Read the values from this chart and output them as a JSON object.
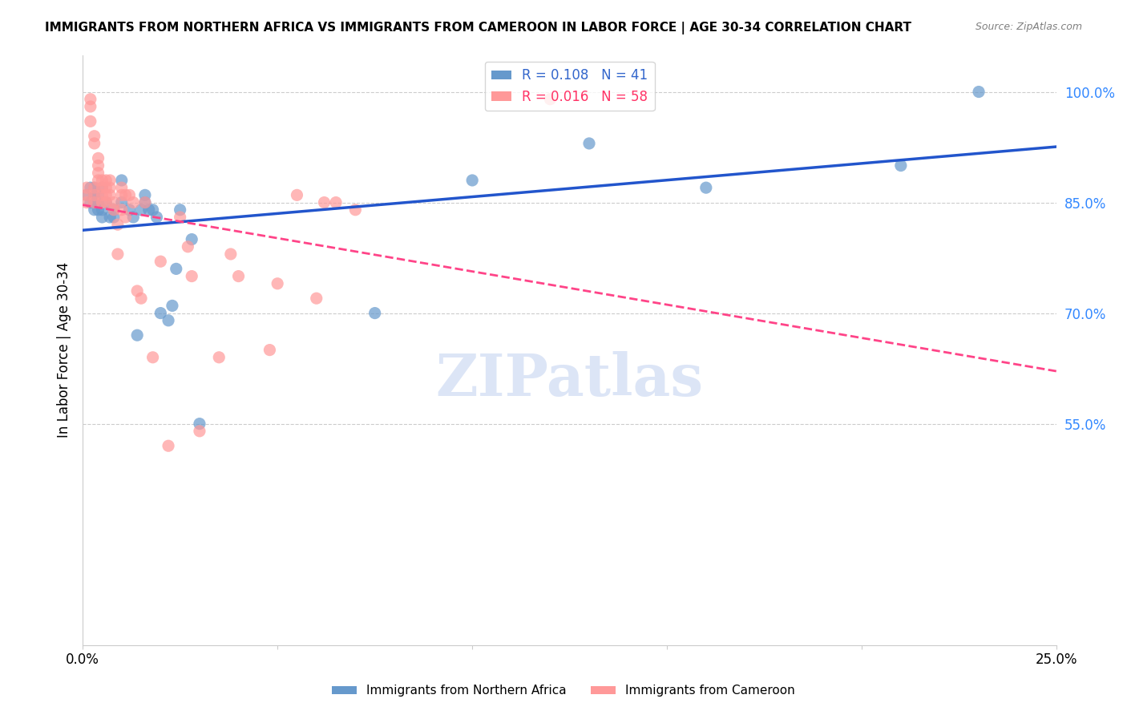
{
  "title": "IMMIGRANTS FROM NORTHERN AFRICA VS IMMIGRANTS FROM CAMEROON IN LABOR FORCE | AGE 30-34 CORRELATION CHART",
  "source": "Source: ZipAtlas.com",
  "xlabel_bottom": "",
  "ylabel": "In Labor Force | Age 30-34",
  "xlim": [
    0.0,
    0.25
  ],
  "ylim": [
    0.25,
    1.05
  ],
  "yticks": [
    0.55,
    0.7,
    0.85,
    1.0
  ],
  "ytick_labels": [
    "55.0%",
    "70.0%",
    "85.0%",
    "100.0%"
  ],
  "xticks": [
    0.0,
    0.05,
    0.1,
    0.15,
    0.2,
    0.25
  ],
  "xtick_labels": [
    "0.0%",
    "",
    "",
    "",
    "",
    "25.0%"
  ],
  "legend_labels": [
    "Immigrants from Northern Africa",
    "Immigrants from Cameroon"
  ],
  "R_blue": 0.108,
  "N_blue": 41,
  "R_pink": 0.016,
  "N_pink": 58,
  "blue_color": "#6699CC",
  "pink_color": "#FF9999",
  "blue_line_color": "#2255CC",
  "pink_line_color": "#FF4488",
  "watermark": "ZIPatlas",
  "watermark_color": "#BBCCEE",
  "blue_x": [
    0.001,
    0.002,
    0.002,
    0.003,
    0.003,
    0.003,
    0.003,
    0.004,
    0.004,
    0.004,
    0.005,
    0.005,
    0.005,
    0.006,
    0.007,
    0.008,
    0.008,
    0.01,
    0.01,
    0.012,
    0.013,
    0.014,
    0.015,
    0.016,
    0.016,
    0.017,
    0.018,
    0.019,
    0.02,
    0.022,
    0.023,
    0.024,
    0.025,
    0.028,
    0.03,
    0.075,
    0.1,
    0.13,
    0.16,
    0.21,
    0.23
  ],
  "blue_y": [
    0.86,
    0.85,
    0.87,
    0.84,
    0.86,
    0.87,
    0.85,
    0.85,
    0.86,
    0.84,
    0.83,
    0.84,
    0.87,
    0.85,
    0.83,
    0.83,
    0.84,
    0.85,
    0.88,
    0.84,
    0.83,
    0.67,
    0.84,
    0.85,
    0.86,
    0.84,
    0.84,
    0.83,
    0.7,
    0.69,
    0.71,
    0.76,
    0.84,
    0.8,
    0.55,
    0.7,
    0.88,
    0.93,
    0.87,
    0.9,
    1.0
  ],
  "pink_x": [
    0.001,
    0.001,
    0.001,
    0.002,
    0.002,
    0.002,
    0.003,
    0.003,
    0.003,
    0.003,
    0.003,
    0.004,
    0.004,
    0.004,
    0.004,
    0.005,
    0.005,
    0.005,
    0.005,
    0.006,
    0.006,
    0.006,
    0.006,
    0.007,
    0.007,
    0.007,
    0.008,
    0.008,
    0.009,
    0.009,
    0.01,
    0.01,
    0.01,
    0.011,
    0.011,
    0.012,
    0.013,
    0.014,
    0.015,
    0.016,
    0.018,
    0.02,
    0.022,
    0.025,
    0.027,
    0.028,
    0.03,
    0.035,
    0.038,
    0.04,
    0.048,
    0.05,
    0.055,
    0.06,
    0.062,
    0.065,
    0.07,
    0.12
  ],
  "pink_y": [
    0.86,
    0.87,
    0.85,
    0.99,
    0.98,
    0.96,
    0.86,
    0.87,
    0.85,
    0.94,
    0.93,
    0.91,
    0.9,
    0.89,
    0.88,
    0.86,
    0.87,
    0.88,
    0.85,
    0.87,
    0.88,
    0.86,
    0.85,
    0.88,
    0.87,
    0.86,
    0.85,
    0.84,
    0.82,
    0.78,
    0.87,
    0.86,
    0.84,
    0.83,
    0.86,
    0.86,
    0.85,
    0.73,
    0.72,
    0.85,
    0.64,
    0.77,
    0.52,
    0.83,
    0.79,
    0.75,
    0.54,
    0.64,
    0.78,
    0.75,
    0.65,
    0.74,
    0.86,
    0.72,
    0.85,
    0.85,
    0.84,
    0.99
  ]
}
